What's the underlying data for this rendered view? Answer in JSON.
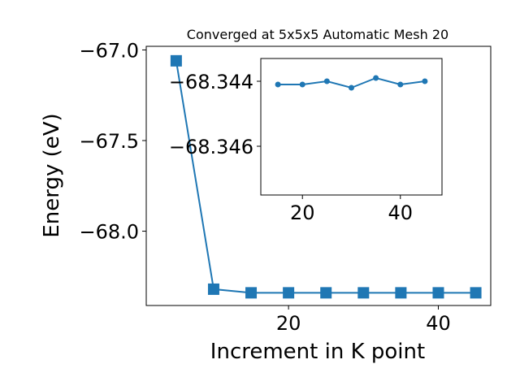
{
  "chart_data": {
    "type": "line",
    "title": "Converged at 5x5x5 Automatic Mesh 20",
    "xlabel": "Increment in K point",
    "ylabel": "Energy (eV)",
    "color": "#1f77b4",
    "grid": false,
    "main": {
      "marker": "square",
      "x": [
        5,
        10,
        15,
        20,
        25,
        30,
        35,
        40,
        45
      ],
      "y": [
        -67.06,
        -68.32,
        -68.34,
        -68.34,
        -68.34,
        -68.34,
        -68.34,
        -68.34,
        -68.34
      ],
      "xlim": [
        1,
        47
      ],
      "ylim": [
        -68.41,
        -66.98
      ],
      "xticks": [
        20,
        40
      ],
      "yticks": [
        -67.0,
        -67.5,
        -68.0
      ],
      "ytick_labels": [
        "−67.0",
        "−67.5",
        "−68.0"
      ]
    },
    "inset": {
      "marker": "circle",
      "x": [
        15,
        20,
        25,
        30,
        35,
        40,
        45
      ],
      "y": [
        -68.3441,
        -68.3441,
        -68.344,
        -68.3442,
        -68.3439,
        -68.3441,
        -68.344
      ],
      "xlim": [
        11.5,
        48.5
      ],
      "ylim": [
        -68.3475,
        -68.3433
      ],
      "xticks": [
        20,
        40
      ],
      "yticks": [
        -68.346,
        -68.344
      ],
      "ytick_labels": [
        "−68.346",
        "−68.344"
      ]
    }
  }
}
